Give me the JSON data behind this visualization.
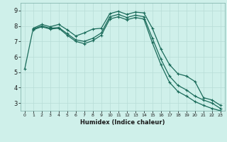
{
  "xlabel": "Humidex (Indice chaleur)",
  "bg_color": "#cff0ea",
  "grid_color": "#b8ddd7",
  "line_color": "#1a6b5a",
  "xlim": [
    -0.5,
    23.5
  ],
  "ylim": [
    2.5,
    9.5
  ],
  "xticks": [
    0,
    1,
    2,
    3,
    4,
    5,
    6,
    7,
    8,
    9,
    10,
    11,
    12,
    13,
    14,
    15,
    16,
    17,
    18,
    19,
    20,
    21,
    22,
    23
  ],
  "yticks": [
    3,
    4,
    5,
    6,
    7,
    8,
    9
  ],
  "line1_x": [
    0,
    1,
    2,
    3,
    4,
    5,
    6,
    7,
    8,
    9,
    10,
    11,
    12,
    13,
    14,
    15,
    16,
    17,
    18,
    19,
    20,
    21,
    22,
    23
  ],
  "line1_y": [
    5.2,
    7.85,
    8.1,
    7.95,
    8.1,
    7.75,
    7.35,
    7.55,
    7.8,
    7.85,
    8.8,
    8.95,
    8.75,
    8.9,
    8.85,
    7.85,
    6.5,
    5.5,
    4.9,
    4.75,
    4.4,
    3.35,
    3.2,
    2.85
  ],
  "line2_x": [
    1,
    2,
    3,
    4,
    5,
    6,
    7,
    8,
    9,
    10,
    11,
    12,
    13,
    14,
    15,
    16,
    17,
    18,
    19,
    20,
    21,
    22,
    23
  ],
  "line2_y": [
    7.8,
    8.0,
    7.85,
    7.9,
    7.5,
    7.1,
    7.0,
    7.2,
    7.55,
    8.6,
    8.75,
    8.55,
    8.7,
    8.6,
    7.2,
    5.85,
    4.75,
    4.15,
    3.85,
    3.45,
    3.2,
    3.0,
    2.65
  ],
  "line3_x": [
    1,
    2,
    3,
    4,
    5,
    6,
    7,
    8,
    9,
    10,
    11,
    12,
    13,
    14,
    15,
    16,
    17,
    18,
    19,
    20,
    21,
    22,
    23
  ],
  "line3_y": [
    7.75,
    7.95,
    7.8,
    7.85,
    7.4,
    7.0,
    6.85,
    7.05,
    7.4,
    8.45,
    8.6,
    8.4,
    8.55,
    8.45,
    6.9,
    5.5,
    4.35,
    3.75,
    3.45,
    3.1,
    2.85,
    2.65,
    2.5
  ],
  "marker_size": 3,
  "line_width": 0.9
}
